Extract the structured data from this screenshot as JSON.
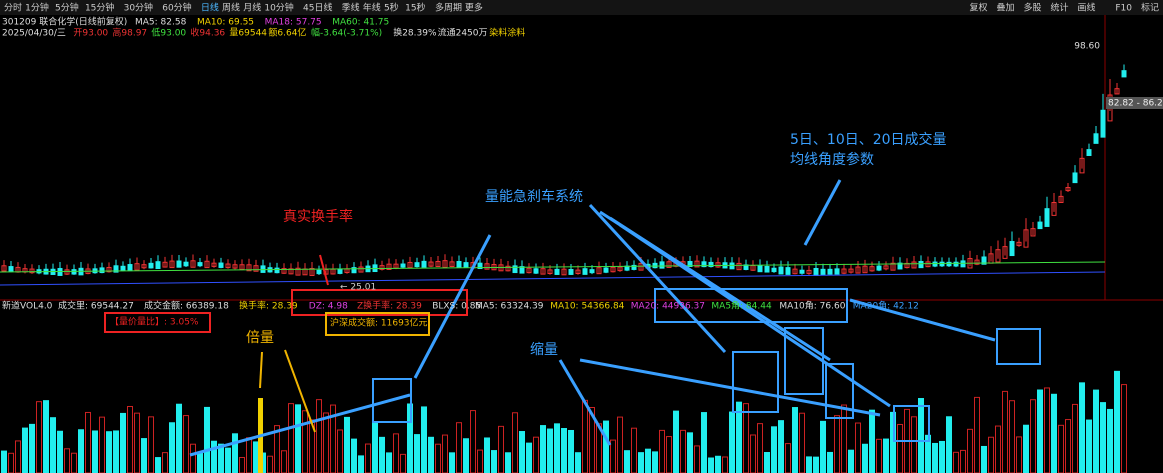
{
  "toolbar": {
    "left": [
      "分时",
      "1分钟",
      "5分钟",
      "15分钟",
      "30分钟",
      "60分钟",
      "日线",
      "周线",
      "月线",
      "10分钟",
      "45日线",
      "季线",
      "年线",
      "5秒",
      "15秒",
      "多周期",
      "更多"
    ],
    "right": [
      "复权",
      "叠加",
      "多股",
      "统计",
      "画线",
      "F10",
      "标记"
    ]
  },
  "info": {
    "stock": "301209 联合化学(日线前复权)",
    "ma": [
      "MA5: 82.58",
      "MA10: 69.55",
      "MA18: 57.75",
      "MA60: 41.75"
    ],
    "quote": [
      "2025/04/30/三",
      "开93.00",
      "高98.97",
      "低93.00",
      "收94.36",
      "量69544",
      "额6.64亿",
      "幅-3.64(-3.71%)",
      "换28.39%",
      "流通2450万",
      "染料涂料"
    ]
  },
  "price_labels": {
    "high": "98.60",
    "range": "82.82 - 86.24",
    "low": "← 25.01"
  },
  "indicator": {
    "name": "新道VOL4.0",
    "items": [
      "成交里: 69544.27",
      "成交金额: 66389.18",
      "换手率: 28.39",
      "DZ: 4.98",
      "Z换手率: 28.39",
      "BLXS: 0.85"
    ],
    "ma": [
      "MA5: 63324.39",
      "MA10: 54366.84",
      "MA20: 44936.37",
      "MA5角: 84.44",
      "MA10角: 76.60",
      "MA20角: 42.12"
    ],
    "ratio": "【量价量比】: 3.05%",
    "turnover": "沪深成交额: 11693亿元"
  },
  "annotations": {
    "angle1": "5日、10日、20日成交量",
    "angle2": "均线角度参数",
    "brake": "量能急刹车系统",
    "real": "真实换手率",
    "double": "倍量",
    "shrink": "缩量"
  }
}
